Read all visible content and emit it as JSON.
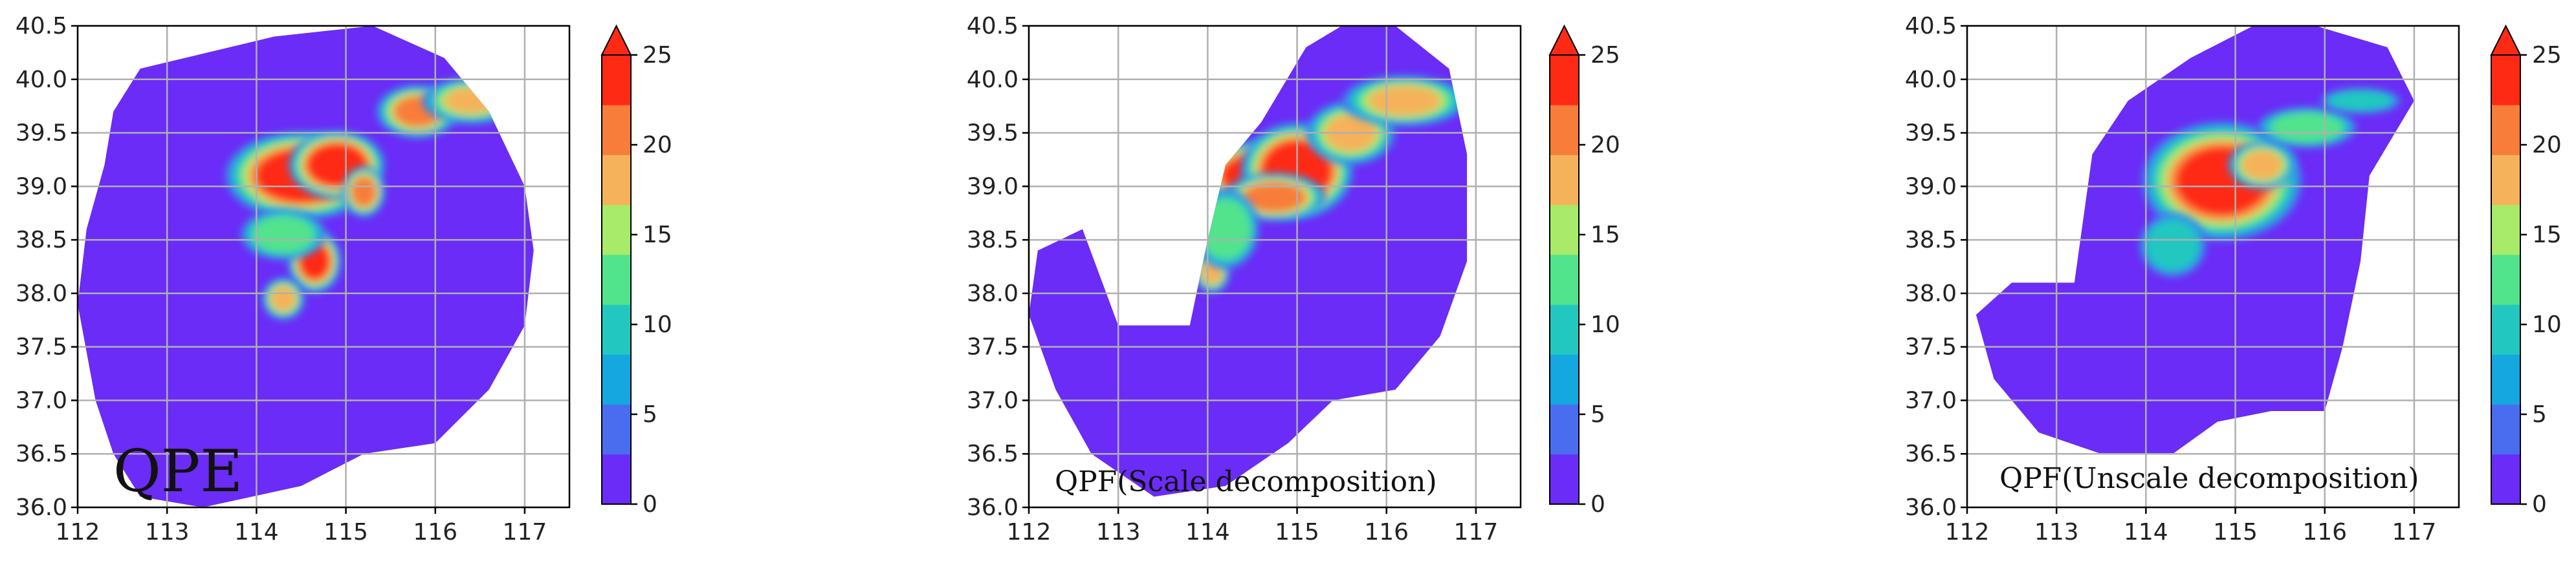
{
  "chart_data": [
    {
      "type": "heatmap",
      "title": "QPE",
      "x_ticks": [
        "112",
        "113",
        "114",
        "115",
        "116",
        "117"
      ],
      "y_ticks": [
        "36.0",
        "36.5",
        "37.0",
        "37.5",
        "38.0",
        "38.5",
        "39.0",
        "39.5",
        "40.0",
        "40.5"
      ],
      "xlim": [
        112,
        117.5
      ],
      "ylim": [
        36.0,
        40.5
      ],
      "grid": true,
      "colorbar": {
        "ticks": [
          "0",
          "5",
          "10",
          "15",
          "20",
          "25"
        ],
        "range": [
          0,
          25
        ],
        "extend": "max"
      },
      "domain": [
        [
          112.7,
          40.1
        ],
        [
          114.2,
          40.4
        ],
        [
          115.3,
          40.5
        ],
        [
          116.1,
          40.2
        ],
        [
          116.6,
          39.7
        ],
        [
          117.0,
          39.0
        ],
        [
          117.1,
          38.4
        ],
        [
          117.0,
          37.7
        ],
        [
          116.6,
          37.1
        ],
        [
          116.0,
          36.6
        ],
        [
          115.2,
          36.5
        ],
        [
          114.5,
          36.2
        ],
        [
          113.4,
          36.0
        ],
        [
          112.7,
          36.1
        ],
        [
          112.4,
          36.5
        ],
        [
          112.2,
          37.0
        ],
        [
          112.0,
          37.9
        ],
        [
          112.1,
          38.6
        ],
        [
          112.3,
          39.2
        ],
        [
          112.4,
          39.7
        ]
      ],
      "cells": [
        {
          "lon": 114.5,
          "lat": 39.1,
          "value": 25,
          "rlon": 0.45,
          "rlat": 0.22,
          "spread": 1.9
        },
        {
          "lon": 114.9,
          "lat": 39.2,
          "value": 24,
          "rlon": 0.3,
          "rlat": 0.18,
          "spread": 1.8
        },
        {
          "lon": 115.2,
          "lat": 38.95,
          "value": 22,
          "rlon": 0.12,
          "rlat": 0.12,
          "spread": 2.0
        },
        {
          "lon": 114.65,
          "lat": 38.3,
          "value": 24,
          "rlon": 0.15,
          "rlat": 0.15,
          "spread": 2.0
        },
        {
          "lon": 114.3,
          "lat": 37.95,
          "value": 20,
          "rlon": 0.12,
          "rlat": 0.1,
          "spread": 2.0
        },
        {
          "lon": 115.8,
          "lat": 39.7,
          "value": 22,
          "rlon": 0.22,
          "rlat": 0.12,
          "spread": 2.1
        },
        {
          "lon": 116.4,
          "lat": 39.8,
          "value": 18,
          "rlon": 0.25,
          "rlat": 0.1,
          "spread": 2.2
        },
        {
          "lon": 114.3,
          "lat": 38.55,
          "value": 12,
          "rlon": 0.3,
          "rlat": 0.15,
          "spread": 1.6
        }
      ]
    },
    {
      "type": "heatmap",
      "title": "QPF(Scale decomposition)",
      "x_ticks": [
        "112",
        "113",
        "114",
        "115",
        "116",
        "117"
      ],
      "y_ticks": [
        "36.0",
        "36.5",
        "37.0",
        "37.5",
        "38.0",
        "38.5",
        "39.0",
        "39.5",
        "40.0",
        "40.5"
      ],
      "xlim": [
        112,
        117.5
      ],
      "ylim": [
        36.0,
        40.5
      ],
      "grid": true,
      "colorbar": {
        "ticks": [
          "0",
          "5",
          "10",
          "15",
          "20",
          "25"
        ],
        "range": [
          0,
          25
        ],
        "extend": "max"
      },
      "domain": [
        [
          114.6,
          39.6
        ],
        [
          115.1,
          40.3
        ],
        [
          115.5,
          40.5
        ],
        [
          116.1,
          40.5
        ],
        [
          116.7,
          40.1
        ],
        [
          116.9,
          39.3
        ],
        [
          116.9,
          38.3
        ],
        [
          116.6,
          37.6
        ],
        [
          116.1,
          37.1
        ],
        [
          115.4,
          37.0
        ],
        [
          114.9,
          36.6
        ],
        [
          114.2,
          36.2
        ],
        [
          113.4,
          36.1
        ],
        [
          112.7,
          36.5
        ],
        [
          112.3,
          37.1
        ],
        [
          112.0,
          37.8
        ],
        [
          112.1,
          38.4
        ],
        [
          112.6,
          38.6
        ],
        [
          113.0,
          37.7
        ],
        [
          113.8,
          37.7
        ],
        [
          114.0,
          38.5
        ],
        [
          114.2,
          39.2
        ]
      ],
      "cells": [
        {
          "lon": 114.55,
          "lat": 39.1,
          "value": 25,
          "rlon": 0.35,
          "rlat": 0.18,
          "spread": 1.8
        },
        {
          "lon": 115.0,
          "lat": 39.15,
          "value": 24,
          "rlon": 0.35,
          "rlat": 0.25,
          "spread": 1.8
        },
        {
          "lon": 114.75,
          "lat": 38.9,
          "value": 23,
          "rlon": 0.3,
          "rlat": 0.12,
          "spread": 1.9
        },
        {
          "lon": 115.6,
          "lat": 39.5,
          "value": 20,
          "rlon": 0.25,
          "rlat": 0.15,
          "spread": 2.0
        },
        {
          "lon": 116.2,
          "lat": 39.8,
          "value": 20,
          "rlon": 0.35,
          "rlat": 0.12,
          "spread": 2.0
        },
        {
          "lon": 114.05,
          "lat": 38.2,
          "value": 20,
          "rlon": 0.1,
          "rlat": 0.1,
          "spread": 2.0
        },
        {
          "lon": 114.2,
          "lat": 38.6,
          "value": 12,
          "rlon": 0.25,
          "rlat": 0.25,
          "spread": 1.5
        }
      ]
    },
    {
      "type": "heatmap",
      "title": "QPF(Unscale decomposition)",
      "x_ticks": [
        "112",
        "113",
        "114",
        "115",
        "116",
        "117"
      ],
      "y_ticks": [
        "36.0",
        "36.5",
        "37.0",
        "37.5",
        "38.0",
        "38.5",
        "39.0",
        "39.5",
        "40.0",
        "40.5"
      ],
      "xlim": [
        112,
        117.5
      ],
      "ylim": [
        36.0,
        40.5
      ],
      "grid": true,
      "colorbar": {
        "ticks": [
          "0",
          "5",
          "10",
          "15",
          "20",
          "25"
        ],
        "range": [
          0,
          25
        ],
        "extend": "max"
      },
      "domain": [
        [
          113.8,
          39.8
        ],
        [
          114.5,
          40.2
        ],
        [
          115.2,
          40.5
        ],
        [
          115.9,
          40.5
        ],
        [
          116.7,
          40.3
        ],
        [
          117.0,
          39.8
        ],
        [
          116.5,
          39.1
        ],
        [
          116.4,
          38.3
        ],
        [
          116.2,
          37.5
        ],
        [
          116.0,
          36.9
        ],
        [
          115.4,
          36.9
        ],
        [
          114.8,
          36.8
        ],
        [
          114.3,
          36.5
        ],
        [
          113.5,
          36.5
        ],
        [
          112.8,
          36.7
        ],
        [
          112.3,
          37.2
        ],
        [
          112.1,
          37.8
        ],
        [
          112.5,
          38.1
        ],
        [
          113.2,
          38.1
        ],
        [
          113.3,
          38.7
        ],
        [
          113.4,
          39.3
        ]
      ],
      "cells": [
        {
          "lon": 114.85,
          "lat": 39.05,
          "value": 25,
          "rlon": 0.45,
          "rlat": 0.28,
          "spread": 2.0
        },
        {
          "lon": 115.3,
          "lat": 39.2,
          "value": 20,
          "rlon": 0.2,
          "rlat": 0.12,
          "spread": 1.9
        },
        {
          "lon": 115.8,
          "lat": 39.55,
          "value": 13,
          "rlon": 0.35,
          "rlat": 0.12,
          "spread": 1.6
        },
        {
          "lon": 116.4,
          "lat": 39.8,
          "value": 10,
          "rlon": 0.3,
          "rlat": 0.08,
          "spread": 1.5
        },
        {
          "lon": 114.3,
          "lat": 38.45,
          "value": 10,
          "rlon": 0.25,
          "rlat": 0.2,
          "spread": 1.5
        }
      ]
    }
  ],
  "colors": {
    "background": "#ffffff",
    "grid": "#b0b0b0",
    "levels": [
      "#6a2cf6",
      "#4a6df0",
      "#14a7e0",
      "#22c8c0",
      "#52e38d",
      "#a8ea6a",
      "#f5b25a",
      "#f87d3a",
      "#ff2a14"
    ]
  }
}
